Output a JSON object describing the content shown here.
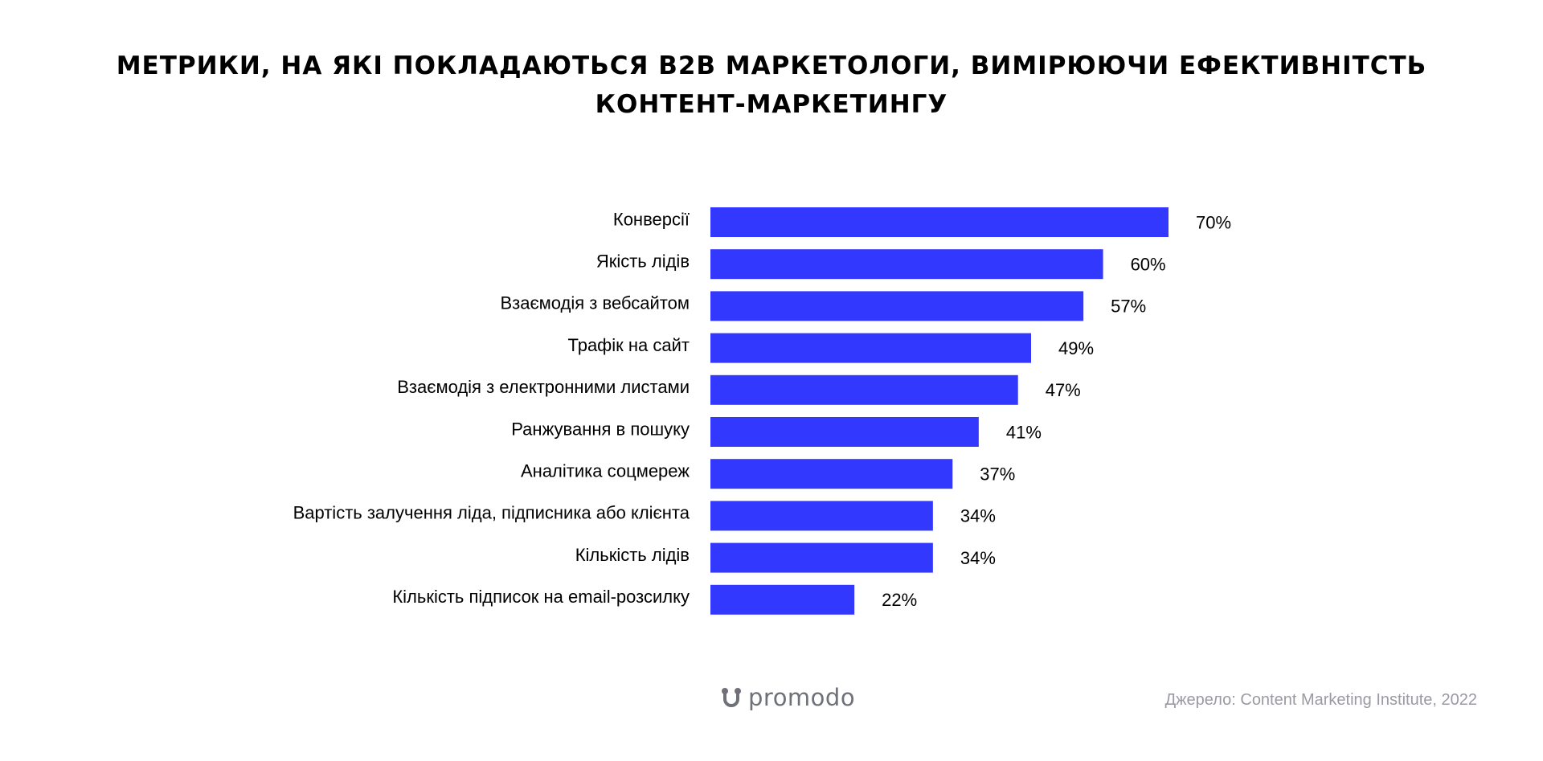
{
  "title": {
    "line1": "МЕТРИКИ, НА ЯКІ ПОКЛАДАЮТЬСЯ B2B МАРКЕТОЛОГИ, ВИМІРЮЮЧИ ЕФЕКТИВНІТСТЬ",
    "line2": "КОНТЕНТ-МАРКЕТИНГУ"
  },
  "colors": {
    "bar": "#3338ff",
    "text": "#000000",
    "footer": "#9a9aa3"
  },
  "chart_data": {
    "type": "bar",
    "orientation": "horizontal",
    "title": "МЕТРИКИ, НА ЯКІ ПОКЛАДАЮТЬСЯ B2B МАРКЕТОЛОГИ, ВИМІРЮЮЧИ ЕФЕКТИВНІТСТЬ КОНТЕНТ-МАРКЕТИНГУ",
    "categories": [
      "Конверсії",
      "Якість лідів",
      "Взаємодія з вебсайтом",
      "Трафік на сайт",
      "Взаємодія з електронними листами",
      "Ранжування в пошуку",
      "Аналітика соцмереж",
      "Вартість залучення ліда, підписника або клієнта",
      "Кількість лідів",
      "Кількість підписок на email-розсилку"
    ],
    "values": [
      70,
      60,
      57,
      49,
      47,
      41,
      37,
      34,
      34,
      22
    ],
    "value_labels": [
      "70%",
      "60%",
      "57%",
      "49%",
      "47%",
      "41%",
      "37%",
      "34%",
      "34%",
      "22%"
    ],
    "unit": "%",
    "xlim": [
      0,
      70
    ],
    "grid": false,
    "legend": "none"
  },
  "footer": {
    "logo_text": "promodo",
    "source": "Джерело: Content Marketing Institute, 2022"
  }
}
